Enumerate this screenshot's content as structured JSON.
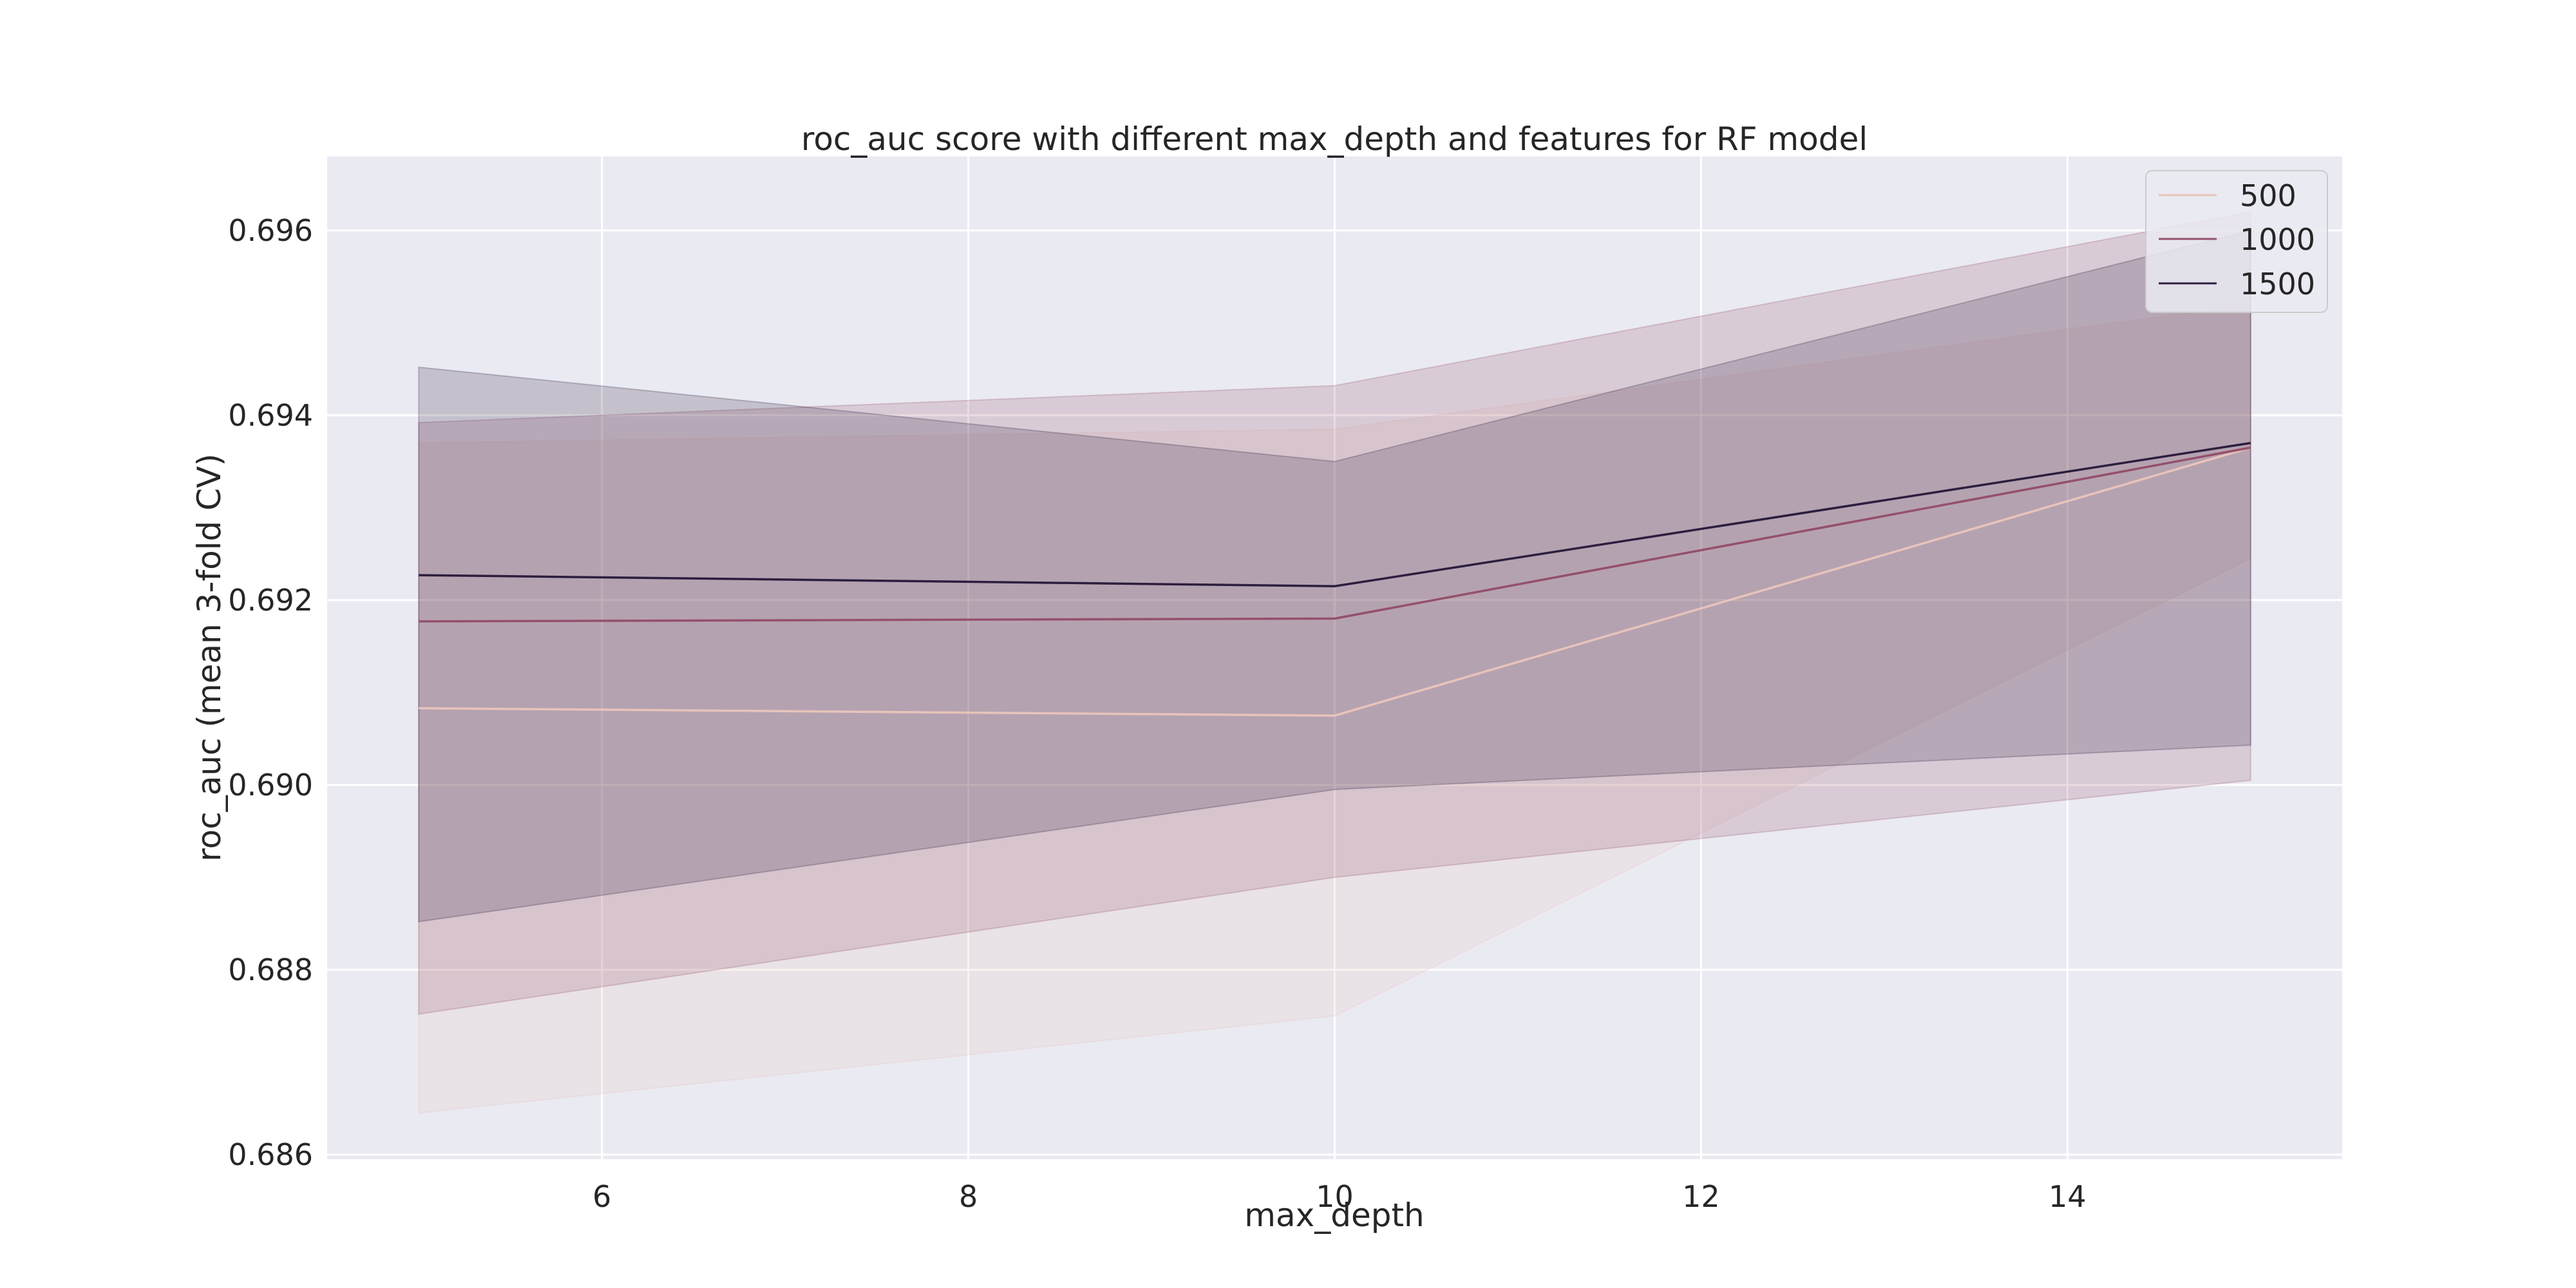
{
  "chart_data": {
    "type": "line",
    "title": "roc_auc score with different max_depth and features for RF model",
    "xlabel": "max_depth",
    "ylabel": "roc_auc (mean 3-fold CV)",
    "xlim": [
      4.5,
      15.5
    ],
    "ylim": [
      0.68595,
      0.6968
    ],
    "xticks": [
      6,
      8,
      10,
      12,
      14
    ],
    "xtick_labels": [
      "6",
      "8",
      "10",
      "12",
      "14"
    ],
    "yticks": [
      0.686,
      0.688,
      0.69,
      0.692,
      0.694,
      0.696
    ],
    "ytick_labels": [
      "0.686",
      "0.688",
      "0.690",
      "0.692",
      "0.694",
      "0.696"
    ],
    "x": [
      5,
      10,
      15
    ],
    "grid": true,
    "legend_position": "top-right",
    "series": [
      {
        "name": "500",
        "color": "#e8c3bb",
        "values": [
          0.69083,
          0.69075,
          0.69365
        ],
        "band_lower": [
          0.68645,
          0.6875,
          0.69245
        ],
        "band_upper": [
          0.6937,
          0.69385,
          0.6952
        ]
      },
      {
        "name": "1000",
        "color": "#94506b",
        "values": [
          0.69177,
          0.6918,
          0.69365
        ],
        "band_lower": [
          0.68752,
          0.689,
          0.69005
        ],
        "band_upper": [
          0.69392,
          0.69432,
          0.6962
        ]
      },
      {
        "name": "1500",
        "color": "#2d1e3e",
        "values": [
          0.69227,
          0.69215,
          0.6937
        ],
        "band_lower": [
          0.68852,
          0.68995,
          0.69043
        ],
        "band_upper": [
          0.69452,
          0.6935,
          0.696
        ]
      }
    ]
  }
}
